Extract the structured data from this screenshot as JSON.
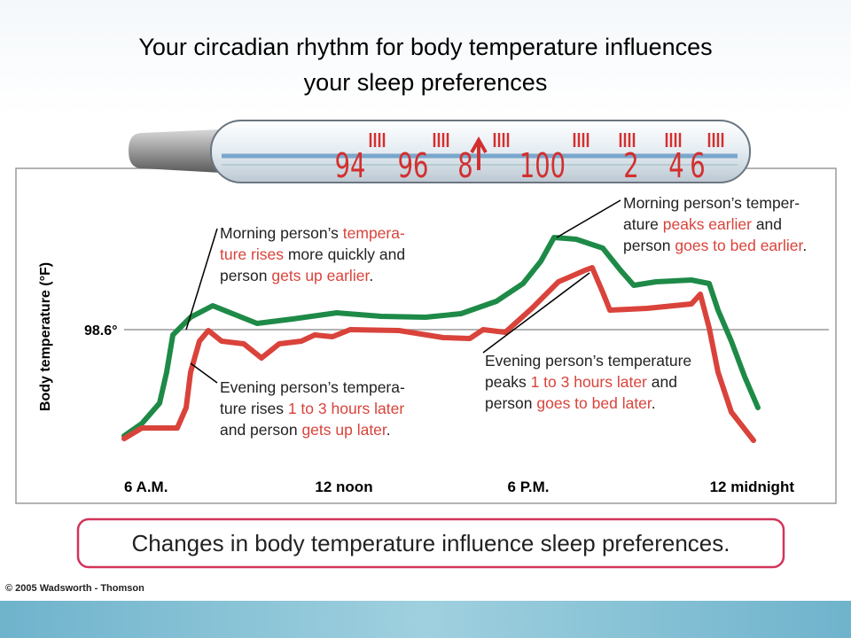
{
  "title": [
    "Your circadian rhythm for body temperature influences",
    "your sleep preferences"
  ],
  "thermometer": [
    "94",
    "96",
    "8",
    "100",
    "2",
    "4",
    "6"
  ],
  "y_axis_label": "Body temperature (°F)",
  "reference_label": "98.6°",
  "x_labels": [
    "6 A.M.",
    "12 noon",
    "6 P.M.",
    "12 midnight"
  ],
  "annotations": [
    {
      "lines": [
        [
          {
            "text": "Morning person’s ",
            "highlight": false
          },
          {
            "text": "tempera-",
            "highlight": true
          }
        ],
        [
          {
            "text": "ture rises",
            "highlight": true
          },
          {
            "text": " more quickly and",
            "highlight": false
          }
        ],
        [
          {
            "text": "person ",
            "highlight": false
          },
          {
            "text": "gets up earlier",
            "highlight": true
          },
          {
            "text": ".",
            "highlight": false
          }
        ]
      ]
    },
    {
      "lines": [
        [
          {
            "text": "Morning person’s temper-",
            "highlight": false
          }
        ],
        [
          {
            "text": "ature ",
            "highlight": false
          },
          {
            "text": "peaks earlier",
            "highlight": true
          },
          {
            "text": " and",
            "highlight": false
          }
        ],
        [
          {
            "text": "person ",
            "highlight": false
          },
          {
            "text": "goes to bed earlier",
            "highlight": true
          },
          {
            "text": ".",
            "highlight": false
          }
        ]
      ]
    },
    {
      "lines": [
        [
          {
            "text": "Evening person’s temperature",
            "highlight": false
          }
        ],
        [
          {
            "text": "peaks ",
            "highlight": false
          },
          {
            "text": "1 to 3 hours later",
            "highlight": true
          },
          {
            "text": " and",
            "highlight": false
          }
        ],
        [
          {
            "text": "person ",
            "highlight": false
          },
          {
            "text": "goes to bed later",
            "highlight": true
          },
          {
            "text": ".",
            "highlight": false
          }
        ]
      ]
    },
    {
      "lines": [
        [
          {
            "text": "Evening person’s tempera-",
            "highlight": false
          }
        ],
        [
          {
            "text": "ture rises ",
            "highlight": false
          },
          {
            "text": "1 to 3 hours later",
            "highlight": true
          }
        ],
        [
          {
            "text": "and person ",
            "highlight": false
          },
          {
            "text": "gets up later",
            "highlight": true
          },
          {
            "text": ".",
            "highlight": false
          }
        ]
      ]
    }
  ],
  "caption": "Changes in body temperature influence sleep preferences.",
  "copyright": "© 2005 Wadsworth - Thomson"
}
